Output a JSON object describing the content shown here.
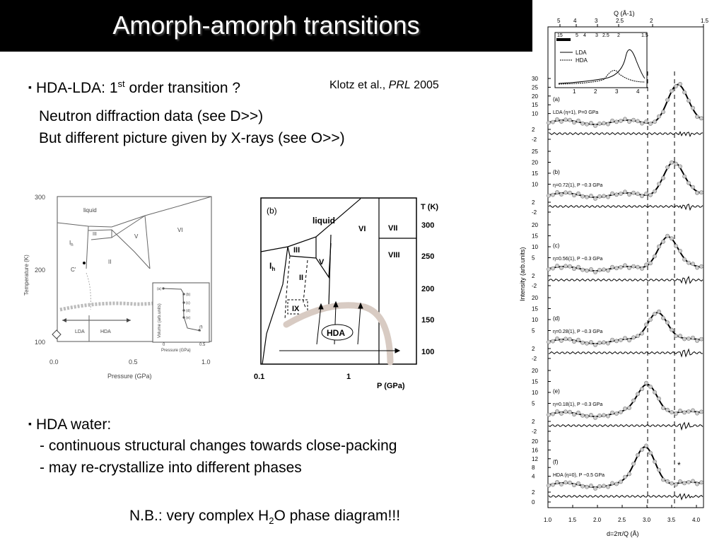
{
  "slide": {
    "title": "Amorph-amorph transitions",
    "bullet1": {
      "pre": "HDA-LDA: 1",
      "sup": "st",
      "post": " order transition ?"
    },
    "citation": {
      "authors": "Klotz et al., ",
      "journal": "PRL",
      "year": " 2005"
    },
    "line1": "Neutron diffraction data (see D>>)",
    "line2": "But different picture given by X-rays (see O>>)",
    "bullet2": "HDA water:",
    "sub1": "- continuous structural changes towards close-packing",
    "sub2": "- may re-crystallize into different phases",
    "note": {
      "pre": "N.B.: very complex H",
      "sub": "2",
      "post": "O phase diagram!!!"
    },
    "bullet_symbol": "▪"
  },
  "fig_left": {
    "ylabel": "Temperature (K)",
    "xlabel": "Pressure (GPa)",
    "yticks": [
      "300",
      "200",
      "100"
    ],
    "xticks": [
      "0.0",
      "0.5",
      "1.0"
    ],
    "regions": {
      "liquid": "liquid",
      "ih": "I",
      "ih_sub": "h",
      "iii": "III",
      "v": "V",
      "vi": "VI",
      "ii": "II",
      "c": "C'"
    },
    "lda": "LDA",
    "hda": "HDA",
    "inset_ylabel": "Volume (arb.units)",
    "inset_xlabel": "Pressure (GPa)",
    "inset_points": [
      "(a)",
      "(b)",
      "(c)",
      "(d)",
      "(e)",
      "(f)"
    ],
    "inset_xticks": [
      "0",
      "0.5"
    ]
  },
  "fig_mid": {
    "panel": "(b)",
    "liquid": "liquid",
    "iii": "III",
    "ih": "I",
    "ih_sub": "h",
    "ii": "II",
    "v": "V",
    "vi": "VI",
    "vii": "VII",
    "viii": "VIII",
    "ix": "IX",
    "hda": "HDA",
    "tlabel": "T (K)",
    "tticks": [
      "300",
      "250",
      "200",
      "150",
      "100"
    ],
    "xticks": [
      "0.1",
      "1"
    ],
    "xlabel": "P (GPa)"
  },
  "fig_right": {
    "top_axis_label": "Q (Å-1)",
    "top_ticks": [
      "5",
      "4",
      "3",
      "2.5",
      "2",
      "1.5"
    ],
    "inset_top_ticks": [
      "15",
      "5",
      "4",
      "3",
      "2.5",
      "2",
      "1.5"
    ],
    "legend_lda": "LDA",
    "legend_hda": "HDA",
    "inset_xticks": [
      "1",
      "2",
      "3",
      "4"
    ],
    "ylabel": "Intensity (arb.units)",
    "xlabel": "d=2π/Q (Å)",
    "xticks": [
      "1.0",
      "1.5",
      "2.0",
      "2.5",
      "3.0",
      "3.5",
      "4.0"
    ],
    "panels": [
      {
        "tag": "(a)",
        "label": "LDA (η=1), P=0 GPa",
        "yticks": [
          "30",
          "25",
          "20",
          "15",
          "10",
          "2",
          "-2"
        ]
      },
      {
        "tag": "(b)",
        "label": "η=0.72(1), P ~0.3 GPa",
        "yticks": [
          "25",
          "20",
          "15",
          "10",
          "2",
          "-2"
        ]
      },
      {
        "tag": "(c)",
        "label": "η=0.56(1), P ~0.3 GPa",
        "yticks": [
          "20",
          "15",
          "10",
          "5",
          "2",
          "-2"
        ]
      },
      {
        "tag": "(d)",
        "label": "η=0.28(1), P ~0.3 GPa",
        "yticks": [
          "20",
          "15",
          "10",
          "5",
          "2",
          "-2"
        ]
      },
      {
        "tag": "(e)",
        "label": "η=0.18(1), P ~0.3 GPa",
        "yticks": [
          "20",
          "15",
          "10",
          "5",
          "2",
          "-2"
        ]
      },
      {
        "tag": "(f)",
        "label": "HDA (η=0), P ~0.5 GPa",
        "yticks": [
          "20",
          "16",
          "12",
          "8",
          "4",
          "2",
          "0"
        ]
      }
    ],
    "star": "*"
  }
}
